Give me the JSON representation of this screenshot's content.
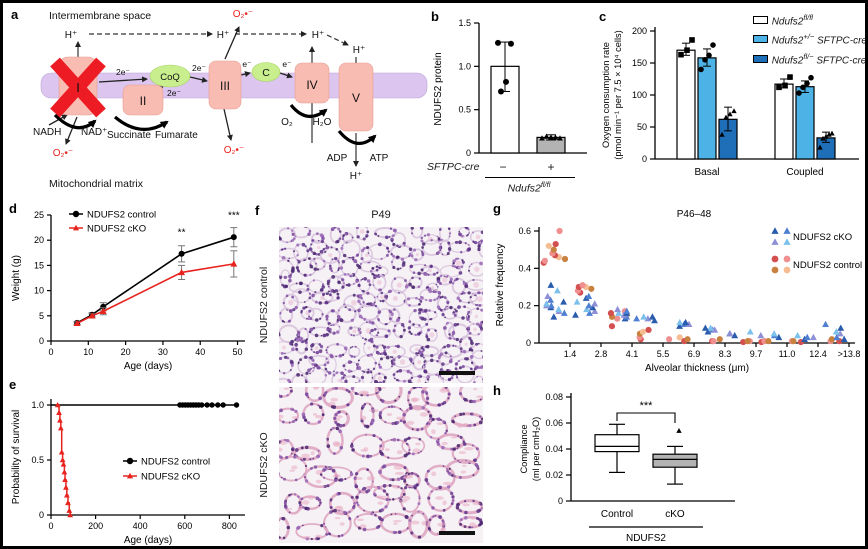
{
  "panel_labels": {
    "a": "a",
    "b": "b",
    "c": "c",
    "d": "d",
    "e": "e",
    "f": "f",
    "g": "g",
    "h": "h"
  },
  "panel_a": {
    "intermembrane_space": "Intermembrane space",
    "mitochondrial_matrix": "Mitochondrial matrix",
    "h_plus": "H⁺",
    "o2_superoxide": "O₂•⁻",
    "two_electrons": "2e⁻",
    "electron": "e⁻",
    "complex_i": "I",
    "complex_ii": "II",
    "complex_iii": "III",
    "complex_iv": "IV",
    "complex_v": "V",
    "coq": "CoQ",
    "cyt_c": "C",
    "nadh": "NADH",
    "nad_plus": "NAD⁺",
    "succinate": "Succinate",
    "fumarate": "Fumarate",
    "o2": "O₂",
    "h2o": "H₂O",
    "adp": "ADP",
    "atp": "ATP",
    "colors": {
      "membrane": "#dcc6ef",
      "complex": "#f8bcb2",
      "carrier": "#c9ee8e",
      "cross": "#ed1c24",
      "superoxide": "#e8231e"
    }
  },
  "panel_b_footer": {
    "sftpc_cre": "SFTPC-cre",
    "minus": "−",
    "plus": "+",
    "gene": "Ndufs2",
    "gene_sup": "fl/fl"
  },
  "panel_c_legend": [
    {
      "gene": "Ndufs2",
      "sup": "fl/fl",
      "suffix": "",
      "swatch_style": "background:#ffffff"
    },
    {
      "gene": "Ndufs2",
      "sup": "+/−",
      "suffix": " SFTPC-cre",
      "swatch_style": "background:#4db3e6"
    },
    {
      "gene": "Ndufs2",
      "sup": "fl/−",
      "suffix": " SFTPC-cre",
      "swatch_style": "background:#1e6eb8"
    }
  ],
  "panel_f": {
    "title": "P49",
    "top_label": "NDUFS2 control",
    "bottom_label": "NDUFS2 cKO"
  },
  "chart_data": [
    {
      "id": "b",
      "type": "bar",
      "ylabel": "NDUFS2 protein",
      "ylim": [
        0,
        1.5
      ],
      "yticks": [
        0,
        0.5,
        1,
        1.5
      ],
      "ytick_labels": [
        "0",
        "0.5",
        "1.0",
        "1.5"
      ],
      "categories": [
        "−",
        "+"
      ],
      "values": [
        1.0,
        0.18
      ],
      "errors": [
        [
          0.71,
          1.28
        ],
        [
          0.15,
          0.21
        ]
      ],
      "points": [
        [
          1.27,
          1.26,
          0.82,
          0.71
        ],
        [
          0.17,
          0.19,
          0.18,
          0.18,
          0.17
        ]
      ],
      "bar_colors": [
        "#ffffff",
        "#b3b3b3"
      ],
      "markers": [
        "circle",
        "triangle"
      ]
    },
    {
      "id": "c",
      "type": "grouped-bar",
      "ylabel_lines": [
        "Oxygen consumption rate",
        "(pmol min⁻¹ per 7.5 × 10⁴ cells)"
      ],
      "ylim": [
        0,
        200
      ],
      "yticks": [
        0,
        50,
        100,
        150,
        200
      ],
      "groups": [
        "Basal",
        "Coupled"
      ],
      "series": [
        {
          "name": "Ndufs2 fl/fl",
          "color": "#ffffff",
          "marker": "square",
          "values": [
            170,
            117
          ],
          "errors": [
            [
              162,
              181
            ],
            [
              111,
              125
            ]
          ],
          "points": [
            [
              163,
              170,
              186
            ],
            [
              112,
              115,
              128
            ]
          ]
        },
        {
          "name": "Ndufs2 +/− SFTPC-cre",
          "color": "#4db3e6",
          "marker": "circle",
          "values": [
            158,
            113
          ],
          "errors": [
            [
              145,
              172
            ],
            [
              104,
              122
            ]
          ],
          "points": [
            [
              140,
              155,
              162,
              178
            ],
            [
              103,
              112,
              118,
              127
            ]
          ]
        },
        {
          "name": "Ndufs2 fl/− SFTPC-cre",
          "color": "#1e6eb8",
          "marker": "triangle",
          "values": [
            62,
            33
          ],
          "errors": [
            [
              44,
              81
            ],
            [
              26,
              42
            ]
          ],
          "points": [
            [
              38,
              65,
              70,
              75
            ],
            [
              18,
              32,
              35,
              38,
              40
            ]
          ]
        }
      ]
    },
    {
      "id": "d",
      "type": "line",
      "xlabel": "Age (days)",
      "ylabel": "Weight (g)",
      "xlim": [
        0,
        52
      ],
      "xticks": [
        0,
        10,
        20,
        30,
        40,
        50
      ],
      "ylim": [
        0,
        25
      ],
      "yticks": [
        0,
        5,
        10,
        15,
        20,
        25
      ],
      "series": [
        {
          "name": "NDUFS2 control",
          "color": "#000000",
          "marker": "circle",
          "x": [
            7,
            11,
            14,
            35,
            49
          ],
          "y": [
            3.6,
            5.2,
            6.8,
            17.3,
            20.6
          ],
          "err": [
            0.3,
            0.4,
            0.8,
            1.6,
            1.9
          ]
        },
        {
          "name": "NDUFS2 cKO",
          "color": "#e8231e",
          "marker": "triangle",
          "x": [
            7,
            11,
            14,
            35,
            49
          ],
          "y": [
            3.5,
            5.0,
            5.9,
            13.6,
            15.3
          ],
          "err": [
            0.3,
            0.4,
            0.7,
            1.4,
            2.6
          ]
        }
      ],
      "annotations": [
        {
          "x": 35,
          "y": 20.9,
          "text": "**"
        },
        {
          "x": 49,
          "y": 24.3,
          "text": "***"
        }
      ]
    },
    {
      "id": "e",
      "type": "survival",
      "xlabel": "Age (days)",
      "ylabel": "Probability of survival",
      "xlim": [
        0,
        870
      ],
      "xticks": [
        0,
        200,
        400,
        600,
        800
      ],
      "yticks": [
        0,
        0.5,
        1
      ],
      "ytick_labels": [
        "0",
        "0.5",
        "1.0"
      ],
      "series": [
        {
          "name": "NDUFS2 control",
          "color": "#000000",
          "marker": "circle",
          "line_end": 832,
          "censor_x": [
            578,
            590,
            602,
            614,
            626,
            638,
            650,
            662,
            676,
            700,
            722,
            748,
            772,
            832
          ]
        },
        {
          "name": "NDUFS2 cKO",
          "color": "#e8231e",
          "marker": "triangle",
          "steps": [
            [
              30,
              1.0
            ],
            [
              36,
              0.93
            ],
            [
              40,
              0.86
            ],
            [
              44,
              0.79
            ],
            [
              48,
              0.57
            ],
            [
              52,
              0.5
            ],
            [
              56,
              0.46
            ],
            [
              60,
              0.39
            ],
            [
              63,
              0.32
            ],
            [
              67,
              0.25
            ],
            [
              71,
              0.18
            ],
            [
              76,
              0.11
            ],
            [
              82,
              0.04
            ],
            [
              86,
              0
            ]
          ]
        }
      ]
    },
    {
      "id": "g",
      "type": "jitter-scatter",
      "title": "P46–48",
      "xlabel": "Alveolar thickness (μm)",
      "ylabel": "Relative frequency",
      "ylim": [
        0,
        0.6
      ],
      "yticks": [
        0,
        0.2,
        0.4,
        0.6
      ],
      "ytick_labels": [
        "0",
        "0.2",
        "0.4",
        "0.6"
      ],
      "bin_labels": [
        "1.4",
        "2.8",
        "4.1",
        "5.5",
        "6.9",
        "8.3",
        "9.7",
        "11.0",
        "12.4",
        ">13.8"
      ],
      "series": [
        {
          "name": "NDUFS2 control",
          "marker": "circle",
          "colors": [
            "#d44f4f",
            "#ef8f8f",
            "#c9813f",
            "#f6bd92"
          ],
          "bins": [
            [
              0.43,
              0.44,
              0.45,
              0.46,
              0.47,
              0.48,
              0.5,
              0.52,
              0.53,
              0.6
            ],
            [
              0.27,
              0.28,
              0.29,
              0.3,
              0.3,
              0.31
            ],
            [
              0.09,
              0.13,
              0.14,
              0.15,
              0.16,
              0.17
            ],
            [
              0.02,
              0.03,
              0.05,
              0.06,
              0.07
            ],
            [
              0.01,
              0.02,
              0.02,
              0.03
            ],
            [
              0.01,
              0.01,
              0.02
            ],
            [
              0.005,
              0.01,
              0.01
            ],
            [
              0.005,
              0.01,
              0.01
            ],
            [
              0.005,
              0.01,
              0.01
            ],
            [
              0.01,
              0.01,
              0.02
            ]
          ]
        },
        {
          "name": "NDUFS2 cKO",
          "marker": "triangle",
          "colors": [
            "#2a5cae",
            "#4e7fd0",
            "#8e8fd6",
            "#7cc0ec"
          ],
          "bins": [
            [
              0.14,
              0.16,
              0.17,
              0.18,
              0.19,
              0.2,
              0.2,
              0.21,
              0.22,
              0.23,
              0.25,
              0.28,
              0.31
            ],
            [
              0.15,
              0.16,
              0.17,
              0.18,
              0.19,
              0.2,
              0.21,
              0.22,
              0.24,
              0.25
            ],
            [
              0.13,
              0.14,
              0.15,
              0.16,
              0.16,
              0.17,
              0.18
            ],
            [
              0.12,
              0.13,
              0.13,
              0.14,
              0.14
            ],
            [
              0.09,
              0.1,
              0.1,
              0.11,
              0.11
            ],
            [
              0.06,
              0.07,
              0.07,
              0.08,
              0.08
            ],
            [
              0.04,
              0.05,
              0.05,
              0.06
            ],
            [
              0.03,
              0.04,
              0.04,
              0.05
            ],
            [
              0.02,
              0.03,
              0.03,
              0.04
            ],
            [
              0.02,
              0.03,
              0.05,
              0.06,
              0.08,
              0.1
            ]
          ]
        }
      ]
    },
    {
      "id": "h",
      "type": "box",
      "ylabel_lines": [
        "Compliance",
        "(ml per cmH₂O)"
      ],
      "ylim": [
        0,
        0.08
      ],
      "yticks": [
        0,
        0.02,
        0.04,
        0.06,
        0.08
      ],
      "ytick_labels": [
        "0",
        "0.02",
        "0.04",
        "0.06",
        "0.08"
      ],
      "group_axis_label": "NDUFS2",
      "sig": "***",
      "boxes": [
        {
          "label": "Control",
          "fill": "#ffffff",
          "whislo": 0.022,
          "q1": 0.038,
          "med": 0.042,
          "q3": 0.051,
          "whishi": 0.059,
          "outliers": []
        },
        {
          "label": "cKO",
          "fill": "#b3b3b3",
          "whislo": 0.013,
          "q1": 0.026,
          "med": 0.032,
          "q3": 0.036,
          "whishi": 0.042,
          "outliers": [
            0.054
          ]
        }
      ]
    }
  ]
}
